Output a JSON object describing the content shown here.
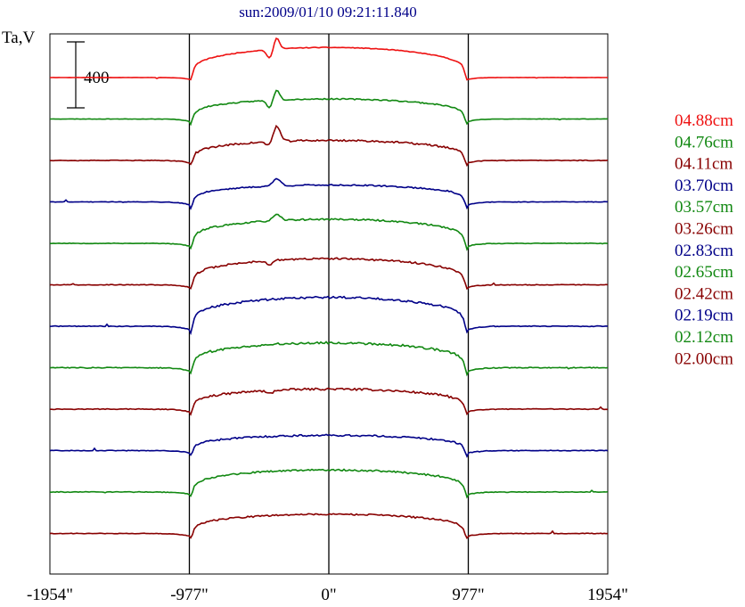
{
  "chart_data": {
    "type": "line",
    "title": "sun:2009/01/10 09:21:11.840",
    "ylabel": "Ta,V",
    "scale_bar_label": "400",
    "x_ticks": [
      {
        "value": -1954,
        "label": "-1954\""
      },
      {
        "value": -977,
        "label": "-977\""
      },
      {
        "value": 0,
        "label": "0\""
      },
      {
        "value": 977,
        "label": "977\""
      },
      {
        "value": 1954,
        "label": "1954\""
      }
    ],
    "xlim": [
      -1954,
      1954
    ],
    "vertical_lines": [
      -977,
      0,
      977
    ],
    "limb_x": 977,
    "series": [
      {
        "name": "04.88cm",
        "color": "#ee1111",
        "disk": 75,
        "dip": 15,
        "dip_width": 55,
        "peak_x": -365,
        "peak_h": 28,
        "peak_w": 9,
        "neg_x": -415,
        "neg_h": 22,
        "noise": 0.6,
        "seed": 11
      },
      {
        "name": "04.76cm",
        "color": "#118811",
        "disk": 50,
        "dip": 22,
        "dip_width": 55,
        "peak_x": -365,
        "peak_h": 26,
        "peak_w": 9,
        "neg_x": -415,
        "neg_h": 18,
        "noise": 1.0,
        "seed": 23
      },
      {
        "name": "04.11cm",
        "color": "#880000",
        "disk": 50,
        "dip": 20,
        "dip_width": 60,
        "peak_x": -365,
        "peak_h": 38,
        "peak_w": 11,
        "neg_x": -420,
        "neg_h": 10,
        "noise": 1.6,
        "seed": 37
      },
      {
        "name": "03.70cm",
        "color": "#000088",
        "disk": 42,
        "dip": 25,
        "dip_width": 65,
        "peak_x": -365,
        "peak_h": 18,
        "peak_w": 12,
        "neg_x": 0,
        "neg_h": 0,
        "noise": 1.2,
        "seed": 41
      },
      {
        "name": "03.57cm",
        "color": "#118811",
        "disk": 60,
        "dip": 24,
        "dip_width": 65,
        "peak_x": -365,
        "peak_h": 14,
        "peak_w": 12,
        "neg_x": 0,
        "neg_h": 0,
        "noise": 1.4,
        "seed": 53
      },
      {
        "name": "03.26cm",
        "color": "#880000",
        "disk": 65,
        "dip": 22,
        "dip_width": 65,
        "peak_x": -415,
        "peak_h": -10,
        "peak_w": 10,
        "neg_x": 0,
        "neg_h": 0,
        "noise": 1.6,
        "seed": 67
      },
      {
        "name": "02.83cm",
        "color": "#000088",
        "disk": 72,
        "dip": 28,
        "dip_width": 70,
        "peak_x": 0,
        "peak_h": 0,
        "peak_w": 10,
        "neg_x": 0,
        "neg_h": 0,
        "noise": 1.8,
        "seed": 71
      },
      {
        "name": "02.65cm",
        "color": "#118811",
        "disk": 62,
        "dip": 26,
        "dip_width": 70,
        "peak_x": 0,
        "peak_h": 0,
        "peak_w": 10,
        "neg_x": 0,
        "neg_h": 0,
        "noise": 2.0,
        "seed": 83
      },
      {
        "name": "02.42cm",
        "color": "#880000",
        "disk": 50,
        "dip": 22,
        "dip_width": 70,
        "peak_x": -415,
        "peak_h": -8,
        "peak_w": 10,
        "neg_x": 0,
        "neg_h": 0,
        "noise": 1.8,
        "seed": 97
      },
      {
        "name": "02.19cm",
        "color": "#000088",
        "disk": 38,
        "dip": 20,
        "dip_width": 70,
        "peak_x": 0,
        "peak_h": 0,
        "peak_w": 10,
        "neg_x": 0,
        "neg_h": 0,
        "noise": 1.6,
        "seed": 101
      },
      {
        "name": "02.12cm",
        "color": "#118811",
        "disk": 55,
        "dip": 20,
        "dip_width": 70,
        "peak_x": 0,
        "peak_h": 0,
        "peak_w": 10,
        "neg_x": 0,
        "neg_h": 0,
        "noise": 1.6,
        "seed": 113
      },
      {
        "name": "02.00cm",
        "color": "#880000",
        "disk": 48,
        "dip": 22,
        "dip_width": 75,
        "peak_x": 0,
        "peak_h": 0,
        "peak_w": 10,
        "neg_x": 0,
        "neg_h": 0,
        "noise": 1.4,
        "seed": 127
      }
    ],
    "legend_position": "right",
    "grid": false
  }
}
